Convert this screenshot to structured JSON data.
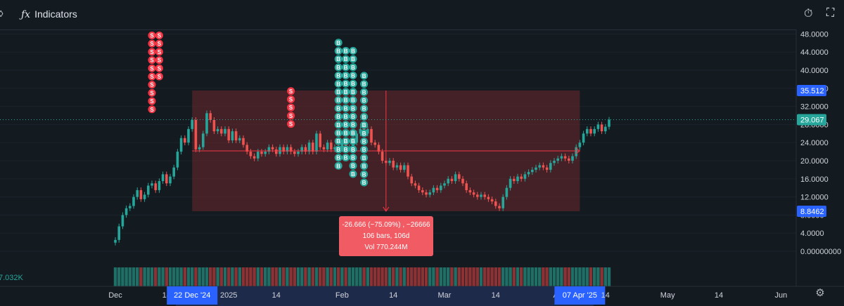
{
  "toolbar": {
    "left_icon": "symbol-icon",
    "indicators_icon": "fx-icon",
    "indicators_label": "Indicators",
    "right_icons": [
      "replay-clock-icon",
      "fullscreen-icon"
    ]
  },
  "colors": {
    "background": "#131a20",
    "up": "#26a69a",
    "down": "#ef5350",
    "range_fill": "rgba(110,40,44,0.55)",
    "range_border": "#f23645",
    "price_badge": "#2962ff",
    "last_price_badge": "#26a69a",
    "sell_marker": "#f23645",
    "buy_marker": "#26a69a"
  },
  "measure_tooltip": {
    "line1": "-26.666 (−75.09%) , −26666",
    "line2": "106 bars, 106d",
    "line3": "Vol 770.244M"
  },
  "volume_label": "7.032K",
  "chart_data": {
    "type": "candlestick",
    "y_range": [
      0,
      49
    ],
    "y_ticks": [
      "48.0000",
      "44.0000",
      "40.0000",
      "36.0000",
      "32.0000",
      "28.0000",
      "24.0000",
      "20.0000",
      "16.0000",
      "12.0000",
      "8.0000",
      "4.0000",
      "0.00000000"
    ],
    "y_tick_values": [
      48,
      44,
      40,
      36,
      32,
      28,
      24,
      20,
      16,
      12,
      8,
      4,
      0
    ],
    "x_ticks": [
      "Dec",
      "14",
      "22 Dec '24",
      "2025",
      "14",
      "Feb",
      "14",
      "Mar",
      "14",
      "Ap",
      "07 Apr '25",
      "14",
      "May",
      "14",
      "Jun"
    ],
    "x_tick_days": [
      0,
      14,
      21,
      31,
      44,
      62,
      76,
      90,
      104,
      121,
      127,
      134,
      151,
      165,
      182
    ],
    "highlighted_x": [
      "22 Dec '24",
      "07 Apr '25"
    ],
    "price_badges": [
      {
        "label": "35.512",
        "value": 35.512,
        "kind": "range-high"
      },
      {
        "label": "29.067",
        "value": 29.067,
        "kind": "last-price"
      },
      {
        "label": "8.8462",
        "value": 8.8462,
        "kind": "range-low"
      }
    ],
    "measure_range": {
      "start_day": 21,
      "end_day": 127,
      "high": 35.512,
      "low": 8.8462
    },
    "closes": [
      2.5,
      5.5,
      8,
      9.5,
      10,
      12,
      13.5,
      11.5,
      12.5,
      14.5,
      15,
      13.5,
      15.5,
      17,
      15,
      16.5,
      18.5,
      22,
      25,
      24,
      27,
      29,
      22.5,
      23,
      26,
      30.5,
      29,
      26.5,
      27,
      26,
      27,
      24.5,
      26.5,
      24.5,
      25,
      23.5,
      22,
      21,
      20.5,
      22,
      21.5,
      22,
      23,
      22.5,
      21.5,
      23,
      22,
      23,
      22,
      21.5,
      22,
      23,
      22,
      24,
      22,
      26,
      23,
      22.5,
      24,
      22.5,
      23,
      22.5,
      24,
      22.5,
      23,
      24,
      26,
      27,
      26,
      27,
      24,
      23.5,
      22,
      20,
      19.5,
      20,
      18.5,
      19,
      18,
      19,
      16.5,
      15,
      14.5,
      13.5,
      13,
      12.5,
      13,
      14,
      13.5,
      14.5,
      15,
      16,
      15.5,
      17,
      16,
      15,
      13.5,
      13,
      12.5,
      12,
      12.5,
      12,
      11.5,
      11,
      10,
      9.5,
      12,
      14,
      16,
      15.5,
      16.5,
      16,
      17,
      17.5,
      18,
      18.5,
      19,
      18.5,
      18,
      19.5,
      20,
      20.5,
      21,
      20.5,
      20,
      21,
      23,
      24,
      26,
      27,
      26,
      27,
      28,
      26.5,
      27.5,
      29.07
    ],
    "volume_label": "7.032K",
    "sell_markers": [
      {
        "day": 10,
        "count": 10
      },
      {
        "day": 12,
        "count": 6
      },
      {
        "day": 48,
        "count": 5
      }
    ],
    "buy_markers": [
      {
        "day": 61,
        "count": 16
      },
      {
        "day": 63,
        "count": 14
      },
      {
        "day": 65,
        "count": 16
      },
      {
        "day": 68,
        "count": 14
      }
    ]
  }
}
